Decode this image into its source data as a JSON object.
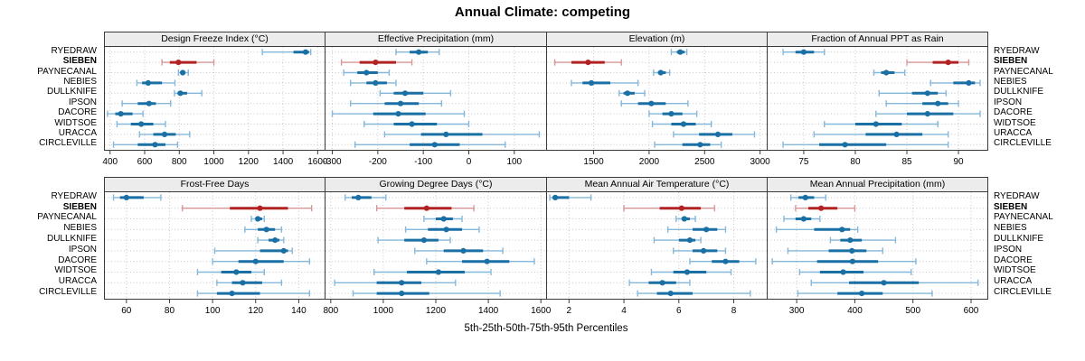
{
  "title": "Annual Climate: competing",
  "xlabel": "5th-25th-50th-75th-95th Percentiles",
  "colors": {
    "blue": "#1a6fa5",
    "blue_light": "#85b8da",
    "red": "#b32222",
    "red_light": "#d79797",
    "grid": "#c8c8c8",
    "header_bg": "#ececec",
    "border": "#3a3a3a"
  },
  "chart_data": {
    "type": "dotplot",
    "description": "Trellis dot plot of 5th-25th-50th-75th-95th percentiles per site, 2 rows x 4 columns of panels",
    "sites": [
      "RYEDRAW",
      "SIEBEN",
      "PAYNECANAL",
      "NEBIES",
      "DULLKNIFE",
      "IPSON",
      "DACORE",
      "WIDTSOE",
      "URACCA",
      "CIRCLEVILLE"
    ],
    "highlight_site": "SIEBEN",
    "percentile_order": [
      "p5",
      "p25",
      "p50",
      "p75",
      "p95"
    ],
    "panels": [
      {
        "row": 0,
        "title": "Design Freeze Index (°C)",
        "xlim": [
          370,
          1640
        ],
        "ticks": [
          400,
          600,
          800,
          1000,
          1200,
          1400,
          1600
        ],
        "values": [
          [
            1280,
            1460,
            1530,
            1550,
            1560
          ],
          [
            700,
            745,
            795,
            900,
            1000
          ],
          [
            795,
            810,
            820,
            832,
            852
          ],
          [
            555,
            585,
            620,
            700,
            775
          ],
          [
            772,
            790,
            806,
            845,
            930
          ],
          [
            470,
            560,
            625,
            665,
            750
          ],
          [
            385,
            430,
            462,
            530,
            590
          ],
          [
            440,
            520,
            580,
            650,
            720
          ],
          [
            570,
            650,
            715,
            780,
            860
          ],
          [
            420,
            560,
            660,
            720,
            790
          ]
        ]
      },
      {
        "row": 0,
        "title": "Effective Precipitation (mm)",
        "xlim": [
          -315,
          170
        ],
        "ticks": [
          -300,
          -200,
          -100,
          0,
          100
        ],
        "values": [
          [
            -160,
            -130,
            -110,
            -90,
            -65
          ],
          [
            -280,
            -240,
            -205,
            -160,
            -125
          ],
          [
            -275,
            -245,
            -225,
            -200,
            -175
          ],
          [
            -260,
            -225,
            -205,
            -180,
            -160
          ],
          [
            -195,
            -165,
            -140,
            -100,
            -40
          ],
          [
            -260,
            -185,
            -150,
            -110,
            -60
          ],
          [
            -300,
            -210,
            -155,
            -95,
            -10
          ],
          [
            -230,
            -165,
            -125,
            -70,
            0
          ],
          [
            -185,
            -105,
            -50,
            30,
            155
          ],
          [
            -250,
            -130,
            -75,
            -20,
            80
          ]
        ]
      },
      {
        "row": 0,
        "title": "Elevation (m)",
        "xlim": [
          1080,
          3060
        ],
        "ticks": [
          1500,
          2000,
          2500,
          3000
        ],
        "values": [
          [
            2200,
            2250,
            2280,
            2320,
            2340
          ],
          [
            1150,
            1300,
            1450,
            1600,
            1750
          ],
          [
            2040,
            2080,
            2105,
            2150,
            2185
          ],
          [
            1300,
            1400,
            1480,
            1650,
            1900
          ],
          [
            1730,
            1770,
            1805,
            1870,
            1960
          ],
          [
            1750,
            1900,
            2020,
            2150,
            2350
          ],
          [
            2000,
            2120,
            2200,
            2300,
            2430
          ],
          [
            2030,
            2200,
            2310,
            2420,
            2560
          ],
          [
            2220,
            2450,
            2620,
            2750,
            2950
          ],
          [
            2050,
            2300,
            2460,
            2550,
            2650
          ]
        ]
      },
      {
        "row": 0,
        "title": "Fraction of Annual PPT as Rain",
        "xlim": [
          71.5,
          92.8
        ],
        "ticks": [
          75,
          80,
          85,
          90
        ],
        "values": [
          [
            73,
            74.2,
            75,
            76,
            77
          ],
          [
            85,
            87.5,
            89,
            90,
            91
          ],
          [
            81.8,
            82.5,
            83,
            83.8,
            84.8
          ],
          [
            87.3,
            89.5,
            91,
            91.6,
            92.1
          ],
          [
            82.3,
            85.5,
            87,
            88,
            88.8
          ],
          [
            83,
            86.5,
            88,
            89,
            90
          ],
          [
            82,
            85,
            87,
            89.5,
            92.1
          ],
          [
            77,
            80,
            82,
            84.5,
            88
          ],
          [
            76,
            81,
            84,
            86.5,
            89
          ],
          [
            73,
            76.5,
            79,
            83,
            89
          ]
        ]
      },
      {
        "row": 1,
        "title": "Frost-Free Days",
        "xlim": [
          50,
          152
        ],
        "ticks": [
          60,
          80,
          100,
          120,
          140
        ],
        "values": [
          [
            54,
            57,
            60,
            68,
            76
          ],
          [
            86,
            108,
            122,
            135,
            146
          ],
          [
            118,
            120,
            121,
            123,
            124
          ],
          [
            115,
            121,
            125,
            129,
            132
          ],
          [
            121,
            126,
            129,
            131,
            133
          ],
          [
            101,
            122,
            133,
            135,
            137
          ],
          [
            100,
            112,
            120,
            133,
            145
          ],
          [
            93,
            104,
            111,
            118,
            124
          ],
          [
            102,
            109,
            114,
            123,
            132
          ],
          [
            93,
            102,
            109,
            122,
            145
          ]
        ]
      },
      {
        "row": 1,
        "title": "Growing Degree Days (°C)",
        "xlim": [
          780,
          1620
        ],
        "ticks": [
          800,
          1000,
          1200,
          1400,
          1600
        ],
        "values": [
          [
            855,
            880,
            905,
            955,
            1010
          ],
          [
            975,
            1080,
            1165,
            1260,
            1345
          ],
          [
            1155,
            1200,
            1230,
            1265,
            1300
          ],
          [
            1085,
            1170,
            1240,
            1300,
            1365
          ],
          [
            980,
            1080,
            1155,
            1210,
            1255
          ],
          [
            1120,
            1230,
            1305,
            1380,
            1455
          ],
          [
            1165,
            1300,
            1395,
            1480,
            1575
          ],
          [
            965,
            1090,
            1210,
            1310,
            1410
          ],
          [
            815,
            975,
            1070,
            1145,
            1275
          ],
          [
            885,
            975,
            1070,
            1175,
            1445
          ]
        ]
      },
      {
        "row": 1,
        "title": "Mean Annual Air Temperature (°C)",
        "xlim": [
          1.2,
          9.2
        ],
        "ticks": [
          2,
          4,
          6,
          8
        ],
        "values": [
          [
            1.3,
            1.4,
            1.5,
            2.0,
            2.8
          ],
          [
            4.0,
            5.3,
            6.1,
            6.8,
            7.3
          ],
          [
            5.9,
            6.1,
            6.2,
            6.4,
            6.6
          ],
          [
            5.6,
            6.5,
            7.0,
            7.4,
            7.7
          ],
          [
            5.1,
            6.0,
            6.4,
            6.6,
            6.8
          ],
          [
            5.8,
            6.5,
            6.9,
            7.4,
            7.7
          ],
          [
            6.4,
            7.2,
            7.7,
            8.2,
            8.8
          ],
          [
            5.0,
            5.8,
            6.3,
            7.0,
            7.9
          ],
          [
            4.2,
            4.9,
            5.4,
            5.9,
            6.4
          ],
          [
            4.5,
            5.2,
            5.7,
            6.5,
            8.6
          ]
        ]
      },
      {
        "row": 1,
        "title": "Mean Annual Precipitation (mm)",
        "xlim": [
          250,
          628
        ],
        "ticks": [
          300,
          400,
          500,
          600
        ],
        "values": [
          [
            290,
            303,
            315,
            330,
            350
          ],
          [
            298,
            320,
            342,
            370,
            400
          ],
          [
            278,
            298,
            312,
            325,
            340
          ],
          [
            265,
            330,
            378,
            392,
            405
          ],
          [
            358,
            375,
            392,
            412,
            470
          ],
          [
            285,
            355,
            395,
            420,
            448
          ],
          [
            258,
            335,
            396,
            440,
            505
          ],
          [
            305,
            340,
            380,
            415,
            497
          ],
          [
            325,
            390,
            450,
            510,
            612
          ],
          [
            302,
            370,
            412,
            448,
            533
          ]
        ]
      }
    ]
  }
}
